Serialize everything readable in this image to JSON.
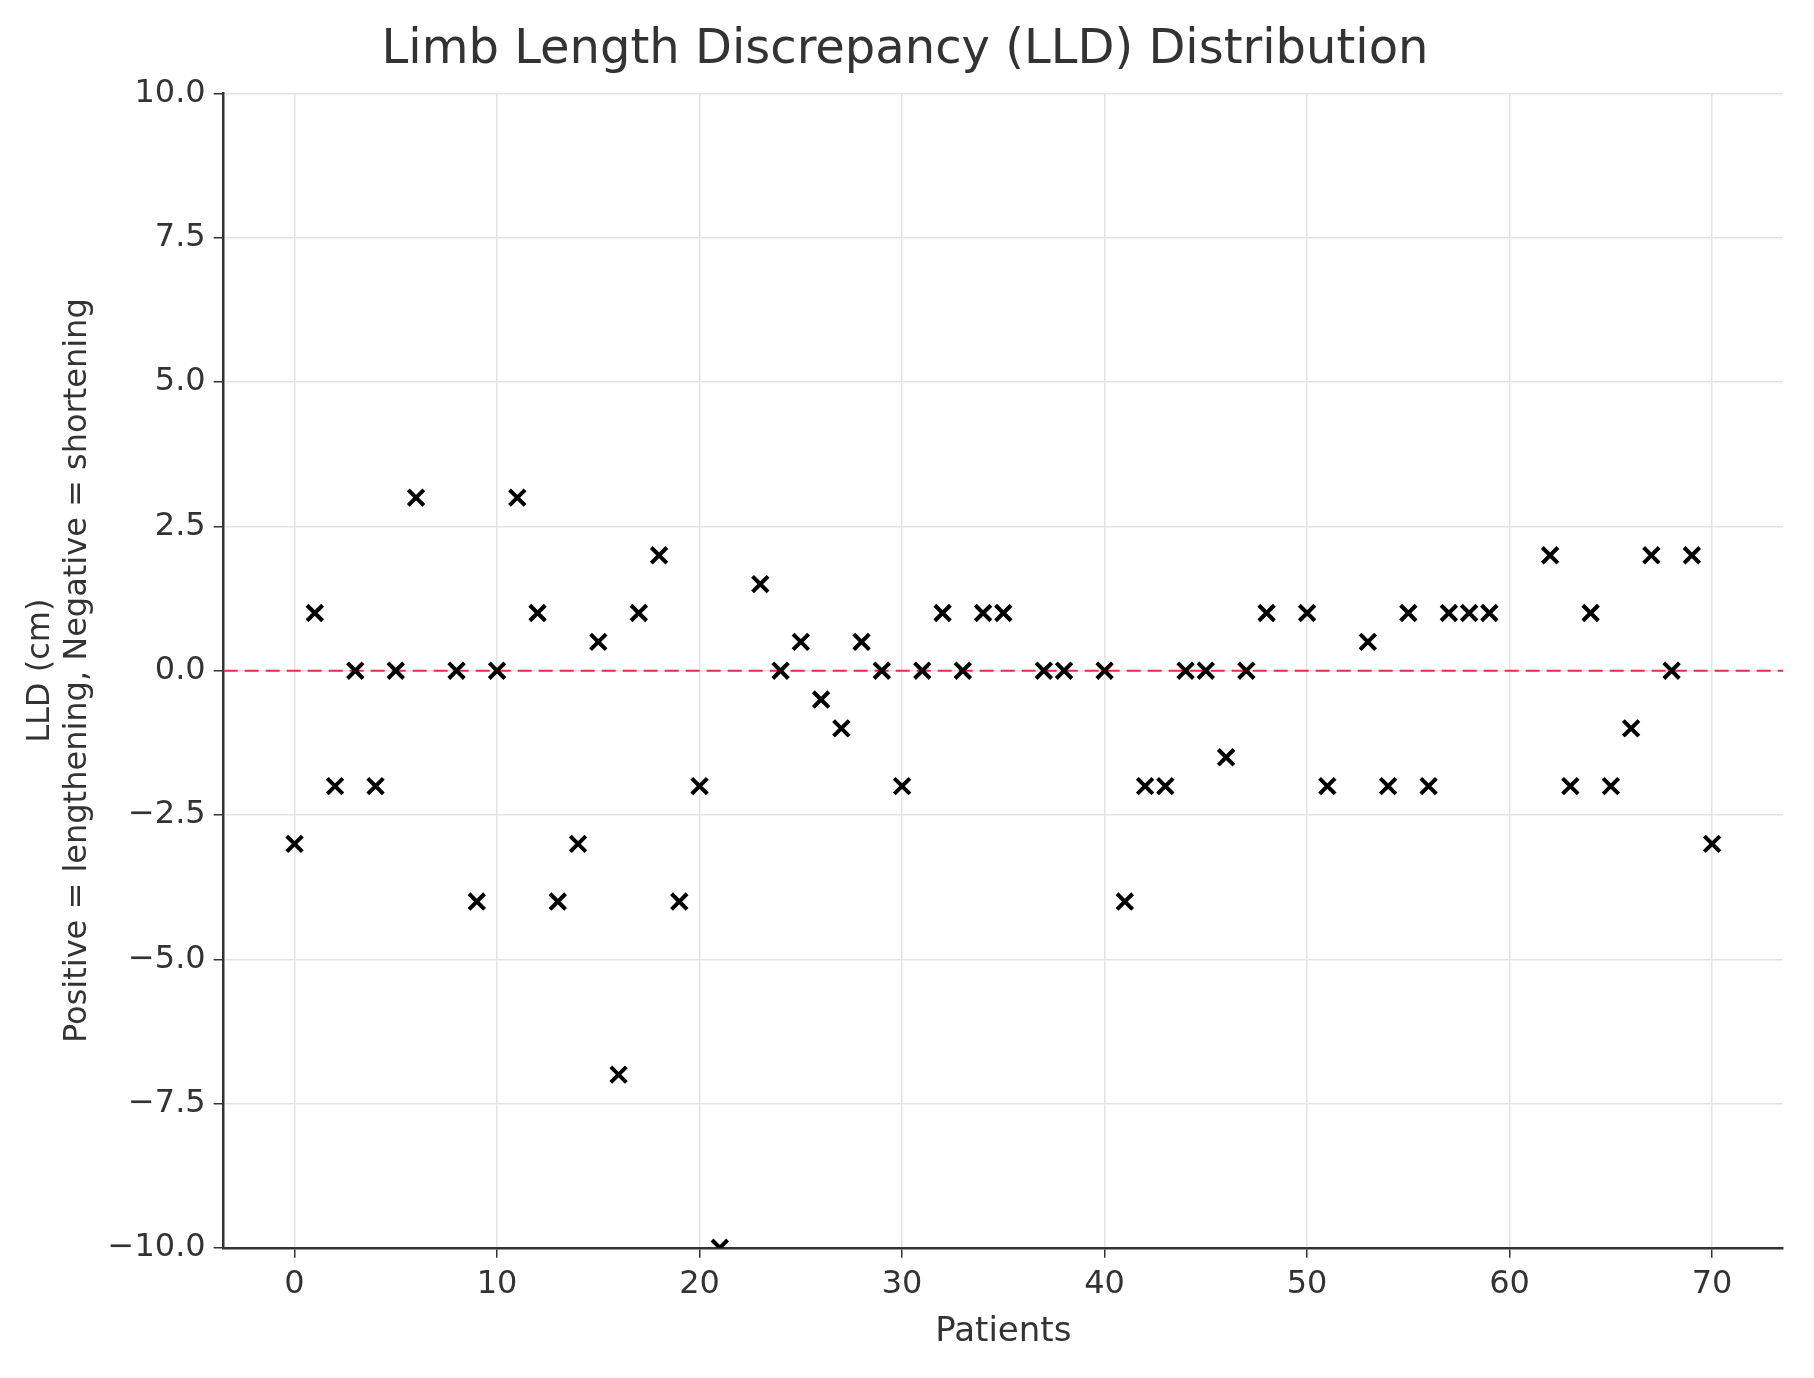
{
  "chart_data": {
    "type": "scatter",
    "title": "Limb Length Discrepancy (LLD) Distribution",
    "xlabel": "Patients",
    "ylabel": "LLD (cm)\nPositive = lengthening, Negative = shortening",
    "series": [
      {
        "color": "#000000",
        "marker": "cross",
        "x": [
          0,
          1,
          2,
          3,
          4,
          5,
          6,
          8,
          9,
          10,
          11,
          12,
          13,
          14,
          15,
          16,
          17,
          18,
          19,
          20,
          21,
          23,
          24,
          25,
          26,
          27,
          28,
          29,
          30,
          31,
          32,
          33,
          34,
          35,
          37,
          38,
          40,
          41,
          42,
          43,
          44,
          45,
          46,
          47,
          48,
          50,
          51,
          53,
          54,
          55,
          56,
          57,
          58,
          59,
          62,
          63,
          64,
          65,
          66,
          67,
          68,
          69,
          70
        ],
        "values": [
          -3,
          1,
          -2,
          0,
          -2,
          0,
          3,
          0,
          -4,
          0,
          3,
          1,
          -4,
          -3,
          0.5,
          -7,
          1,
          2,
          -4,
          -2,
          -10,
          1.5,
          0,
          0.5,
          -0.5,
          -1,
          0.5,
          0,
          -2,
          0,
          1,
          0,
          1,
          1,
          0,
          0,
          0,
          -4,
          -2,
          -2,
          0,
          0,
          -1.5,
          0,
          1,
          1,
          -2,
          0.5,
          -2,
          1,
          -2,
          1,
          1,
          1,
          2,
          -2,
          1,
          -2,
          -1,
          2,
          0,
          2,
          -3
        ]
      }
    ],
    "xlim": [
      -3.5,
      73.5
    ],
    "xticks": [
      0,
      10,
      20,
      30,
      40,
      50,
      60,
      70
    ],
    "ylim": [
      -10,
      10
    ],
    "yticks": [
      {
        "value": -10,
        "label": "−10.0"
      },
      {
        "value": -7.5,
        "label": "−7.5"
      },
      {
        "value": -5,
        "label": "−5.0"
      },
      {
        "value": -2.5,
        "label": "−2.5"
      },
      {
        "value": 0,
        "label": "0.0"
      },
      {
        "value": 2.5,
        "label": "2.5"
      },
      {
        "value": 5,
        "label": "5.0"
      },
      {
        "value": 7.5,
        "label": "7.5"
      },
      {
        "value": 10,
        "label": "10.0"
      }
    ],
    "ref_lines": [
      {
        "axis": "y",
        "value": 0,
        "color": "#e0304a",
        "line_style": "dashed"
      }
    ],
    "grid": true,
    "legend": false
  }
}
